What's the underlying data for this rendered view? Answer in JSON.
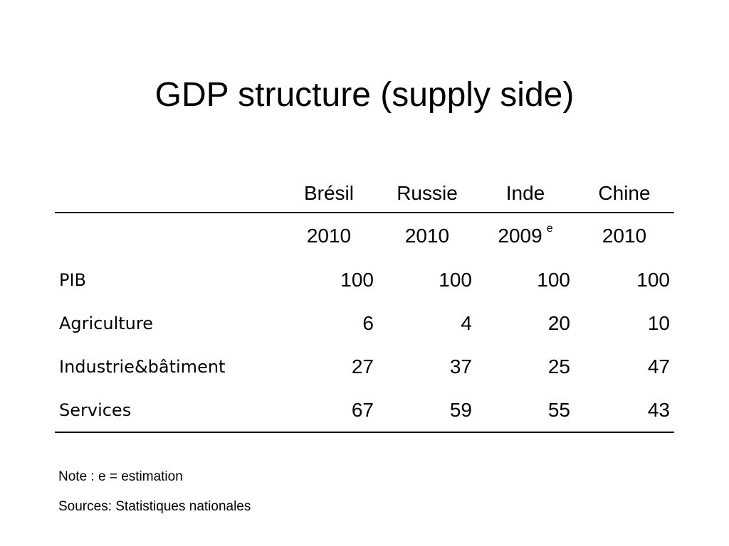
{
  "slide": {
    "title": "GDP structure (supply side)",
    "note": "Note : e = estimation",
    "sources": "Sources: Statistiques nationales"
  },
  "table": {
    "columns": [
      "Brésil",
      "Russie",
      "Inde",
      "Chine"
    ],
    "years": [
      {
        "year": "2010",
        "mark": ""
      },
      {
        "year": "2010",
        "mark": ""
      },
      {
        "year": "2009",
        "mark": "e"
      },
      {
        "year": "2010",
        "mark": ""
      }
    ],
    "rows": [
      {
        "label": "PIB",
        "values": [
          "100",
          "100",
          "100",
          "100"
        ]
      },
      {
        "label": "Agriculture",
        "values": [
          "6",
          "4",
          "20",
          "10"
        ]
      },
      {
        "label": "Industrie&bâtiment",
        "values": [
          "27",
          "37",
          "25",
          "47"
        ]
      },
      {
        "label": "Services",
        "values": [
          "67",
          "59",
          "55",
          "43"
        ]
      }
    ]
  }
}
